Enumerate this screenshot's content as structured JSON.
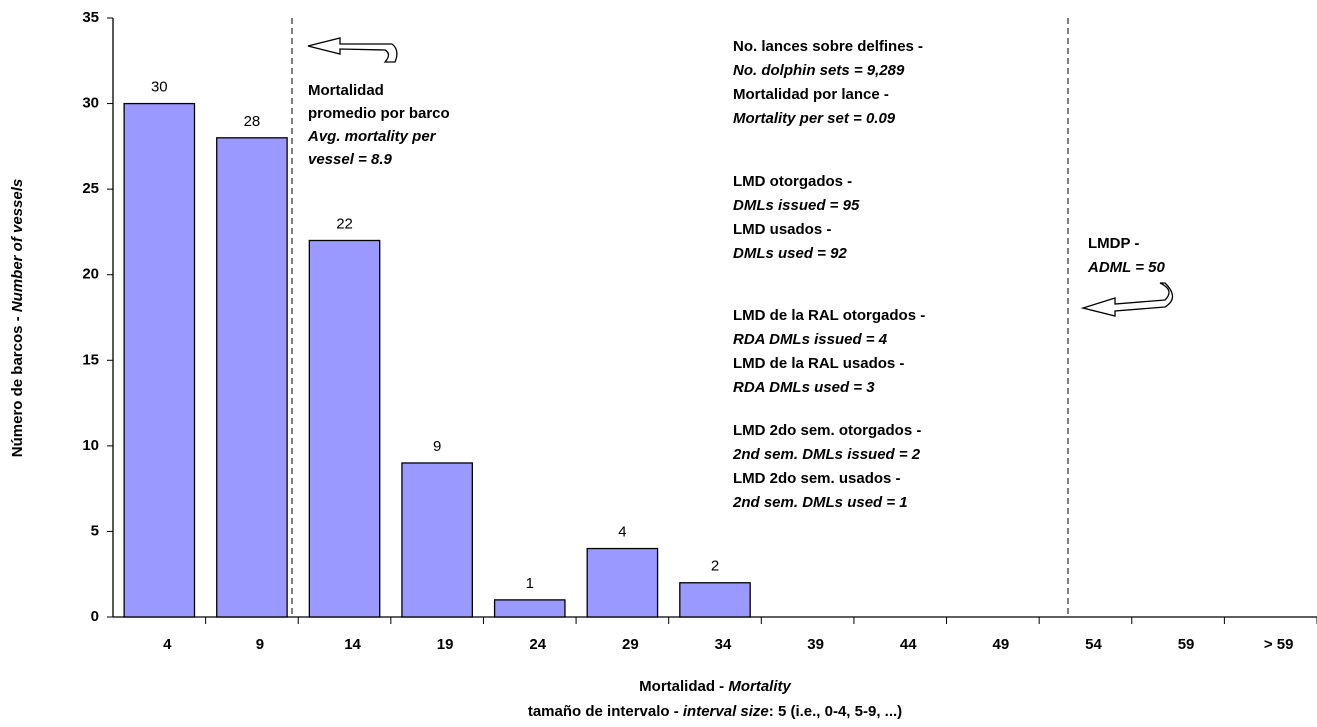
{
  "chart_data": {
    "type": "bar",
    "categories": [
      "4",
      "9",
      "14",
      "19",
      "24",
      "29",
      "34",
      "39",
      "44",
      "49",
      "54",
      "59",
      "> 59"
    ],
    "values": [
      30,
      28,
      22,
      9,
      1,
      4,
      2,
      0,
      0,
      0,
      0,
      0,
      0
    ],
    "color": "#9999ff",
    "ylim": [
      0,
      35
    ],
    "yticks": [
      0,
      5,
      10,
      15,
      20,
      25,
      30,
      35
    ],
    "y_label": [
      "Número de barcos - ",
      "Number of vessels"
    ],
    "x_label": [
      "Mortalidad - ",
      "Mortality"
    ],
    "x_sublabel": [
      "tamaño de intervalo - ",
      "interval size",
      ": 5 (i.e., 0-4, 5-9, ...)"
    ],
    "annotations": [
      [
        [
          {
            "text": "Mortalidad",
            "italic": false
          },
          {
            "text": "promedio por barco",
            "italic": false
          },
          {
            "text": "Avg. mortality per",
            "italic": true
          },
          {
            "text": "vessel = 8.9",
            "italic": true
          }
        ]
      ],
      [
        [
          {
            "text": "No. lances sobre delfines -",
            "italic": false
          },
          {
            "text": "No. dolphin sets = 9,289",
            "italic": true
          },
          {
            "text": "Mortalidad por lance -",
            "italic": false
          },
          {
            "text": "Mortality per set = 0.09",
            "italic": true
          }
        ],
        [
          {
            "text": "LMD otorgados -",
            "italic": false
          },
          {
            "text": "DMLs issued  = 95",
            "italic": true
          },
          {
            "text": "LMD usados -",
            "italic": false
          },
          {
            "text": "DMLs used    = 92",
            "italic": true
          }
        ],
        [
          {
            "text": "LMD de la RAL otorgados -",
            "italic": false
          },
          {
            "text": "RDA DMLs issued  = 4",
            "italic": true
          },
          {
            "text": "LMD de la RAL usados -",
            "italic": false
          },
          {
            "text": "RDA DMLs used    = 3",
            "italic": true
          }
        ],
        [
          {
            "text": "LMD 2do sem. otorgados -",
            "italic": false
          },
          {
            "text": "2nd sem. DMLs issued  = 2",
            "italic": true
          },
          {
            "text": "LMD 2do sem. usados -",
            "italic": false
          },
          {
            "text": "2nd sem. DMLs used    = 1",
            "italic": true
          }
        ]
      ],
      [
        [
          {
            "text": "LMDP -",
            "italic": false
          },
          {
            "text": "ADML = 50",
            "italic": true
          }
        ]
      ]
    ]
  }
}
